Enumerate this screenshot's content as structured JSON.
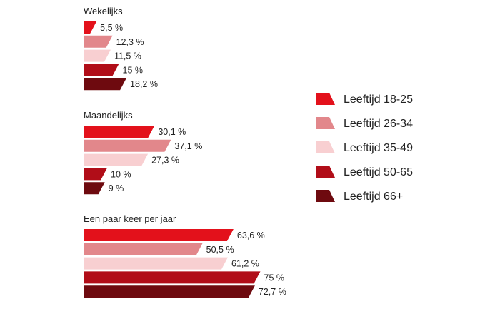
{
  "chart_data": {
    "type": "bar",
    "orientation": "horizontal",
    "title": "",
    "xlabel": "",
    "ylabel": "",
    "xlim": [
      0,
      100
    ],
    "unit_suffix": " %",
    "series": [
      {
        "name": "Leeftijd 18-25",
        "color": "#e3111b",
        "values": [
          5.5,
          30.1,
          63.6
        ],
        "labels": [
          "5,5 %",
          "30,1 %",
          "63,6 %"
        ]
      },
      {
        "name": "Leeftijd 26-34",
        "color": "#e2878b",
        "values": [
          12.3,
          37.1,
          50.5
        ],
        "labels": [
          "12,3 %",
          "37,1 %",
          "50,5 %"
        ]
      },
      {
        "name": "Leeftijd 35-49",
        "color": "#f8cfd1",
        "values": [
          11.5,
          27.3,
          61.2
        ],
        "labels": [
          "11,5 %",
          "27,3 %",
          "61,2 %"
        ]
      },
      {
        "name": "Leeftijd 50-65",
        "color": "#b10d18",
        "values": [
          15,
          10,
          75
        ],
        "labels": [
          "15 %",
          "10 %",
          "75 %"
        ]
      },
      {
        "name": "Leeftijd 66+",
        "color": "#6e0a0f",
        "values": [
          18.2,
          9,
          72.7
        ],
        "labels": [
          "18,2 %",
          "9 %",
          "72,7 %"
        ]
      }
    ],
    "categories": [
      "Wekelijks",
      "Maandelijks",
      "Een paar keer per jaar"
    ],
    "legend_position": "right"
  }
}
